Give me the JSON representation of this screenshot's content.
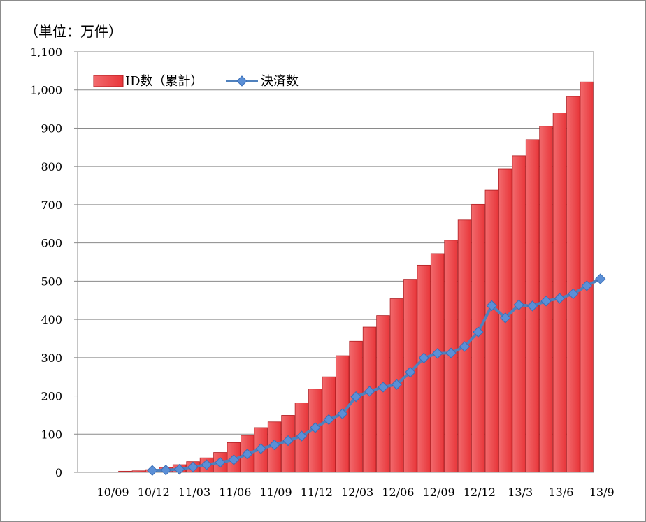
{
  "unit_label": "（単位：万件）",
  "chart_data": {
    "type": "bar+line",
    "unit": "（単位：万件）",
    "ylim": [
      0,
      1100
    ],
    "y_ticks": [
      "0",
      "100",
      "200",
      "300",
      "400",
      "500",
      "600",
      "700",
      "800",
      "900",
      "1,000",
      "1,100"
    ],
    "x_tick_labels": [
      "10/09",
      "10/12",
      "11/03",
      "11/06",
      "11/09",
      "11/12",
      "12/03",
      "12/06",
      "12/09",
      "12/12",
      "13/3",
      "13/6",
      "13/9"
    ],
    "grid": true,
    "legend_position": "top-left",
    "series": [
      {
        "name": "ID数（累計）",
        "type": "bar",
        "color": "#e8363a",
        "values": [
          1,
          1,
          1,
          3,
          4,
          7,
          13,
          20,
          28,
          38,
          52,
          78,
          97,
          117,
          132,
          149,
          182,
          218,
          250,
          305,
          343,
          380,
          410,
          454,
          505,
          542,
          572,
          607,
          660,
          701,
          738,
          793,
          828,
          870,
          905,
          940,
          983,
          1021
        ]
      },
      {
        "name": "決済数",
        "type": "line",
        "color": "#4f81bd",
        "start_index": 5,
        "values": [
          5,
          6,
          8,
          14,
          20,
          26,
          33,
          48,
          62,
          72,
          83,
          95,
          117,
          138,
          153,
          198,
          212,
          223,
          230,
          262,
          299,
          311,
          312,
          329,
          367,
          436,
          404,
          438,
          435,
          448,
          455,
          467,
          488,
          506
        ]
      }
    ]
  }
}
